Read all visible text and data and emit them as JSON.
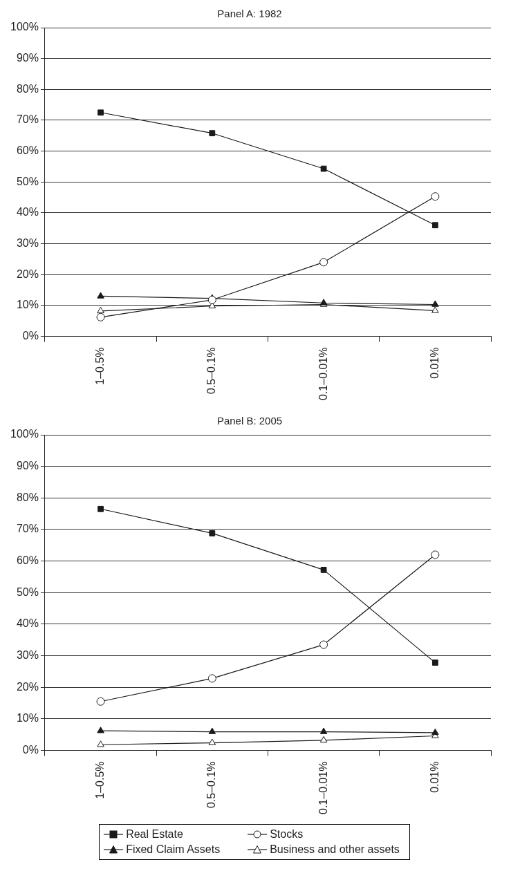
{
  "chart_data": [
    {
      "type": "line",
      "title": "Panel A: 1982",
      "categories": [
        "1–0.5%",
        "0.5–0.1%",
        "0.1–0.01%",
        "0.01%"
      ],
      "ylim": [
        0,
        100
      ],
      "yticks": [
        {
          "value": 0,
          "label": "0%"
        },
        {
          "value": 10,
          "label": "10%"
        },
        {
          "value": 20,
          "label": "20%"
        },
        {
          "value": 30,
          "label": "30%"
        },
        {
          "value": 40,
          "label": "40%"
        },
        {
          "value": 50,
          "label": "50%"
        },
        {
          "value": 60,
          "label": "60%"
        },
        {
          "value": 70,
          "label": "70%"
        },
        {
          "value": 80,
          "label": "80%"
        },
        {
          "value": 90,
          "label": "90%"
        },
        {
          "value": 100,
          "label": "100%"
        }
      ],
      "grid": "y",
      "legend": false,
      "series": [
        {
          "color": "#1a1a1a",
          "marker": "square",
          "values": [
            72.5,
            65.8,
            54.3,
            36
          ]
        },
        {
          "color": "#1a1a1a",
          "marker": "circle",
          "values": [
            6.2,
            11.8,
            24,
            45.3
          ]
        },
        {
          "color": "#1a1a1a",
          "marker": "triangle",
          "values": [
            13,
            12.3,
            10.8,
            10.3
          ]
        },
        {
          "color": "#1a1a1a",
          "marker": "triangle",
          "values": [
            8.2,
            9.8,
            10.3,
            8.3
          ]
        }
      ]
    },
    {
      "type": "line",
      "title": "Panel B: 2005",
      "categories": [
        "1–0.5%",
        "0.5–0.1%",
        "0.1–0.01%",
        "0.01%"
      ],
      "ylim": [
        0,
        100
      ],
      "yticks": [
        {
          "value": 0,
          "label": "0%"
        },
        {
          "value": 10,
          "label": "10%"
        },
        {
          "value": 20,
          "label": "20%"
        },
        {
          "value": 30,
          "label": "30%"
        },
        {
          "value": 40,
          "label": "40%"
        },
        {
          "value": 50,
          "label": "50%"
        },
        {
          "value": 60,
          "label": "60%"
        },
        {
          "value": 70,
          "label": "70%"
        },
        {
          "value": 80,
          "label": "80%"
        },
        {
          "value": 90,
          "label": "90%"
        },
        {
          "value": 100,
          "label": "100%"
        }
      ],
      "grid": "y",
      "legend": "bottom",
      "series": [
        {
          "name": "Real Estate",
          "color": "#1a1a1a",
          "marker": "square",
          "values": [
            76.5,
            68.8,
            57.2,
            27.8
          ]
        },
        {
          "name": "Stocks",
          "color": "#1a1a1a",
          "marker": "circle",
          "values": [
            15.5,
            22.8,
            33.5,
            62
          ]
        },
        {
          "name": "Fixed Claim Assets",
          "color": "#1a1a1a",
          "marker": "triangle",
          "values": [
            6.2,
            5.9,
            5.9,
            5.6
          ]
        },
        {
          "name": "Business and other assets",
          "color": "#1a1a1a",
          "marker": "triangle",
          "values": [
            1.8,
            2.4,
            3.2,
            4.6
          ]
        }
      ]
    }
  ]
}
